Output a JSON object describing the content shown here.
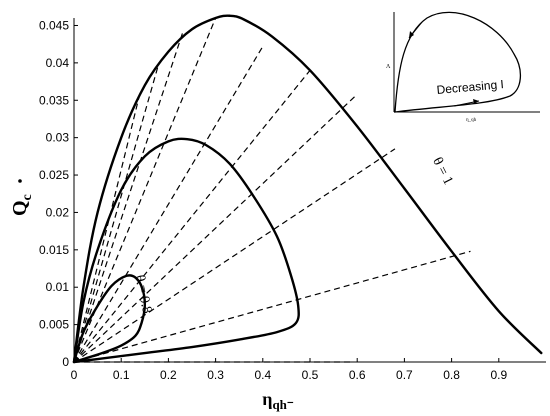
{
  "chart_data": {
    "type": "line",
    "xlabel": "η",
    "xlabel_sub": "qh⁻",
    "ylabel": "Q",
    "ylabel_sub": "c",
    "xlim": [
      0,
      1.0
    ],
    "ylim": [
      0,
      0.046
    ],
    "x_ticks": [
      0,
      0.1,
      0.2,
      0.3,
      0.4,
      0.5,
      0.6,
      0.7,
      0.8,
      0.9
    ],
    "y_ticks": [
      0,
      0.005,
      0.01,
      0.015,
      0.02,
      0.025,
      0.03,
      0.035,
      0.04,
      0.045
    ],
    "x_tick_labels": [
      "0",
      "0.1",
      "0.2",
      "0.3",
      "0.4",
      "0.5",
      "0.6",
      "0.7",
      "0.8",
      "0.9"
    ],
    "y_tick_labels": [
      "0",
      "0.005",
      "0.01",
      "0.015",
      "0.02",
      "0.025",
      "0.03",
      "0.035",
      "0.04",
      "0.045"
    ],
    "series": [
      {
        "label": "θ = 1",
        "points": [
          [
            0,
            0
          ],
          [
            0.02,
            0.01
          ],
          [
            0.05,
            0.02
          ],
          [
            0.1,
            0.03
          ],
          [
            0.15,
            0.037
          ],
          [
            0.2,
            0.0415
          ],
          [
            0.25,
            0.0445
          ],
          [
            0.3,
            0.046
          ],
          [
            0.33,
            0.0463
          ],
          [
            0.36,
            0.0458
          ],
          [
            0.42,
            0.0435
          ],
          [
            0.5,
            0.039
          ],
          [
            0.6,
            0.0315
          ],
          [
            0.7,
            0.0232
          ],
          [
            0.8,
            0.0148
          ],
          [
            0.9,
            0.0068
          ],
          [
            0.99,
            0.0012
          ]
        ]
      },
      {
        "label": "",
        "points": [
          [
            0,
            0
          ],
          [
            0.02,
            0.008
          ],
          [
            0.05,
            0.015
          ],
          [
            0.1,
            0.023
          ],
          [
            0.15,
            0.0275
          ],
          [
            0.2,
            0.0295
          ],
          [
            0.24,
            0.0298
          ],
          [
            0.28,
            0.029
          ],
          [
            0.33,
            0.0265
          ],
          [
            0.38,
            0.0222
          ],
          [
            0.43,
            0.0168
          ],
          [
            0.46,
            0.0115
          ],
          [
            0.475,
            0.0075
          ],
          [
            0.47,
            0.0052
          ],
          [
            0.43,
            0.004
          ],
          [
            0.35,
            0.003
          ],
          [
            0.25,
            0.002
          ],
          [
            0.15,
            0.0012
          ],
          [
            0.05,
            0.0004
          ],
          [
            0,
            0
          ]
        ]
      },
      {
        "label": "θ = 0.8",
        "points": [
          [
            0,
            0
          ],
          [
            0.02,
            0.004
          ],
          [
            0.05,
            0.0075
          ],
          [
            0.08,
            0.0102
          ],
          [
            0.11,
            0.0115
          ],
          [
            0.13,
            0.0113
          ],
          [
            0.145,
            0.0098
          ],
          [
            0.15,
            0.0075
          ],
          [
            0.143,
            0.0052
          ],
          [
            0.13,
            0.0035
          ],
          [
            0.1,
            0.0022
          ],
          [
            0.06,
            0.0012
          ],
          [
            0.02,
            0.0004
          ],
          [
            0,
            0
          ]
        ]
      }
    ],
    "dashed_lines_endpoints": [
      [
        0.14,
        0.036
      ],
      [
        0.18,
        0.04
      ],
      [
        0.23,
        0.044
      ],
      [
        0.3,
        0.046
      ],
      [
        0.4,
        0.0422
      ],
      [
        0.5,
        0.039
      ],
      [
        0.6,
        0.0358
      ],
      [
        0.68,
        0.0285
      ],
      [
        0.84,
        0.0148
      ],
      [
        0.59,
        0.0
      ]
    ],
    "annotations": [
      {
        "text": "θ = 1",
        "at": [
          0.76,
          0.027
        ]
      },
      {
        "text": "θ = 0.8",
        "at": [
          0.13,
          0.0115
        ]
      }
    ],
    "inset": {
      "legend_text": "Decreasing I",
      "axis_y_label": "Λ",
      "axis_x_label": "η_qh"
    }
  }
}
